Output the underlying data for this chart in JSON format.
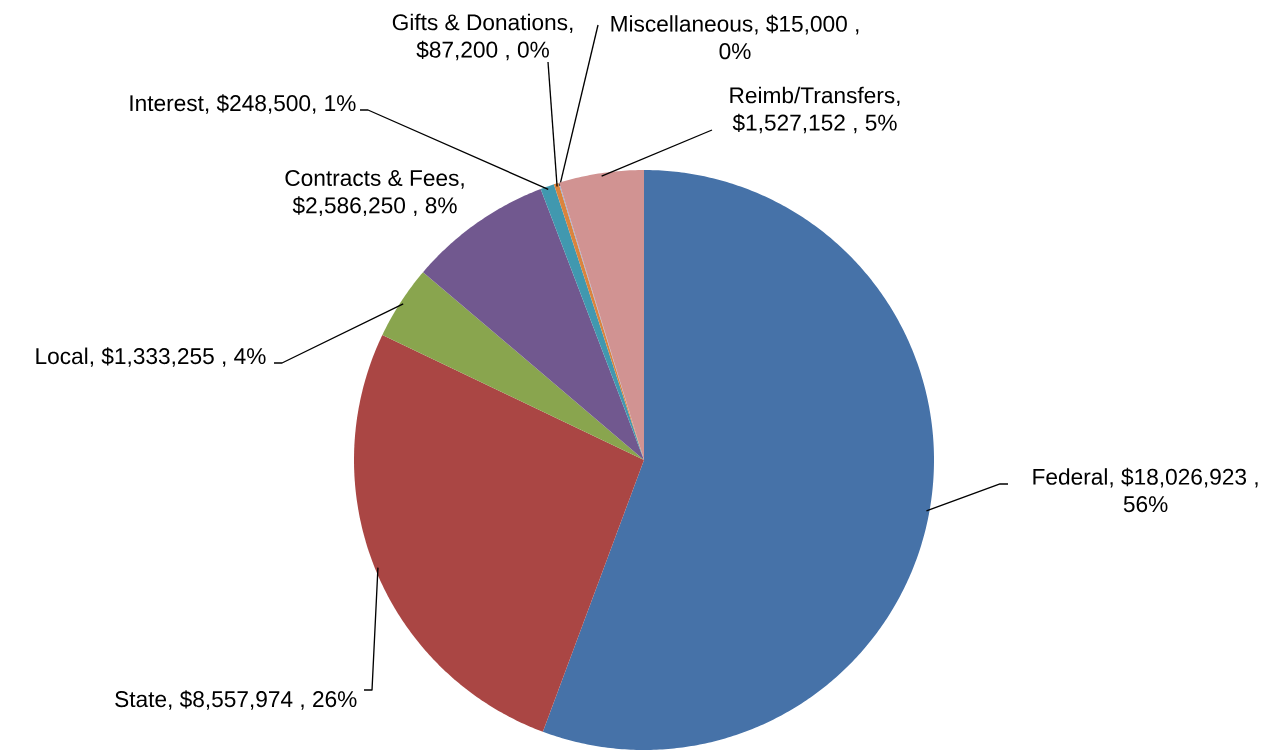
{
  "chart_data": {
    "type": "pie",
    "categories": [
      "Federal",
      "State",
      "Local",
      "Contracts & Fees",
      "Interest",
      "Gifts & Donations",
      "Miscellaneous",
      "Reimb/Transfers"
    ],
    "values": [
      18026923,
      8557974,
      1333255,
      2586250,
      248500,
      87200,
      15000,
      1527152
    ],
    "value_labels": [
      ",  $18,026,923 , 56%",
      ",  $8,557,974 , 26%",
      ",  $1,333,255 , 4%",
      ", $2,586,250 , 8%",
      ", $248,500, 1%",
      ", $87,200 , 0%",
      ",  $15,000 , 0%",
      ", $1,527,152 , 5%"
    ],
    "colors": [
      "#4672a8",
      "#aa4644",
      "#89a54e",
      "#71588f",
      "#4198af",
      "#db843d",
      "#93a9cf",
      "#d19392"
    ]
  }
}
